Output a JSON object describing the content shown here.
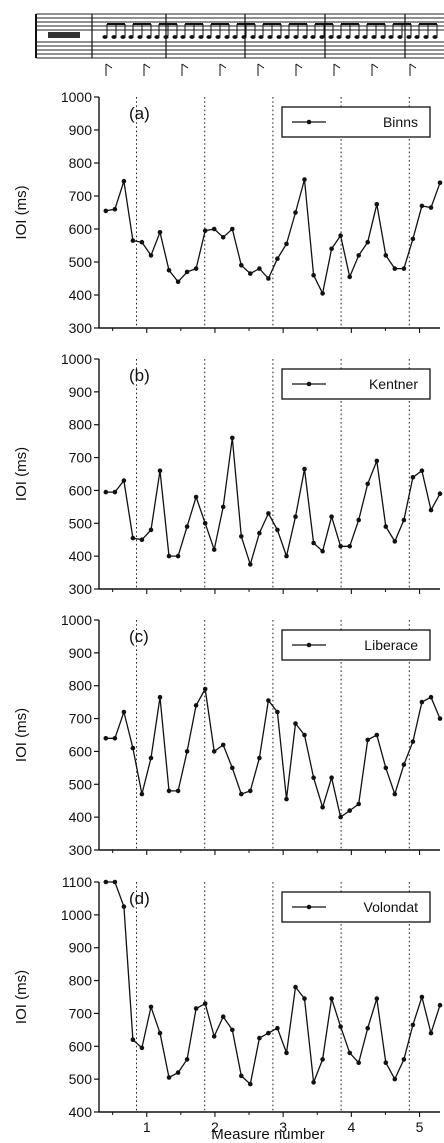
{
  "chart_data": [
    {
      "type": "line",
      "panel_label": "(a)",
      "series": [
        {
          "name": "Binns",
          "values": [
            655,
            660,
            745,
            565,
            560,
            520,
            590,
            475,
            440,
            470,
            480,
            595,
            600,
            575,
            600,
            490,
            465,
            480,
            450,
            510,
            555,
            650,
            750,
            460,
            405,
            540,
            580,
            455,
            520,
            560,
            675,
            520,
            480,
            480,
            570,
            670,
            665,
            740
          ]
        }
      ],
      "ylabel": "IOI (ms)",
      "ylim": [
        300,
        1000
      ],
      "yticks": [
        300,
        400,
        500,
        600,
        700,
        800,
        900,
        1000
      ],
      "xlim": [
        0.3,
        5.3
      ],
      "measure_lines": [
        0.85,
        1.85,
        2.85,
        3.85,
        4.85
      ],
      "grid": false,
      "legend_position": "top-right"
    },
    {
      "type": "line",
      "panel_label": "(b)",
      "series": [
        {
          "name": "Kentner",
          "values": [
            595,
            595,
            630,
            455,
            450,
            480,
            660,
            400,
            400,
            490,
            580,
            500,
            420,
            550,
            760,
            460,
            375,
            470,
            530,
            480,
            400,
            520,
            665,
            440,
            415,
            520,
            430,
            430,
            510,
            620,
            690,
            490,
            445,
            510,
            640,
            660,
            540,
            590
          ]
        }
      ],
      "ylabel": "IOI (ms)",
      "ylim": [
        300,
        1000
      ],
      "yticks": [
        300,
        400,
        500,
        600,
        700,
        800,
        900,
        1000
      ],
      "xlim": [
        0.3,
        5.3
      ],
      "measure_lines": [
        0.85,
        1.85,
        2.85,
        3.85,
        4.85
      ],
      "grid": false,
      "legend_position": "top-right"
    },
    {
      "type": "line",
      "panel_label": "(c)",
      "series": [
        {
          "name": "Liberace",
          "values": [
            640,
            640,
            720,
            610,
            470,
            580,
            765,
            480,
            480,
            600,
            740,
            790,
            600,
            620,
            550,
            470,
            480,
            580,
            755,
            720,
            455,
            685,
            650,
            520,
            430,
            520,
            400,
            420,
            440,
            635,
            650,
            550,
            470,
            560,
            630,
            750,
            765,
            700
          ]
        }
      ],
      "ylabel": "IOI (ms)",
      "ylim": [
        300,
        1000
      ],
      "yticks": [
        300,
        400,
        500,
        600,
        700,
        800,
        900,
        1000
      ],
      "xlim": [
        0.3,
        5.3
      ],
      "measure_lines": [
        0.85,
        1.85,
        2.85,
        3.85,
        4.85
      ],
      "grid": false,
      "legend_position": "top-right"
    },
    {
      "type": "line",
      "panel_label": "(d)",
      "series": [
        {
          "name": "Volondat",
          "values": [
            1100,
            1100,
            1025,
            620,
            595,
            720,
            640,
            505,
            520,
            560,
            715,
            730,
            630,
            690,
            650,
            510,
            485,
            625,
            640,
            655,
            580,
            780,
            745,
            490,
            560,
            745,
            660,
            580,
            550,
            655,
            745,
            550,
            500,
            560,
            665,
            750,
            640,
            725
          ]
        }
      ],
      "xlabel": "Measure number",
      "ylabel": "IOI (ms)",
      "ylim": [
        400,
        1100
      ],
      "yticks": [
        400,
        500,
        600,
        700,
        800,
        900,
        1000,
        1100
      ],
      "xlim": [
        0.3,
        5.3
      ],
      "xticks": [
        1,
        2,
        3,
        4,
        5
      ],
      "measure_lines": [
        0.85,
        1.85,
        2.85,
        3.85,
        4.85
      ],
      "grid": false,
      "legend_position": "top-right"
    }
  ]
}
